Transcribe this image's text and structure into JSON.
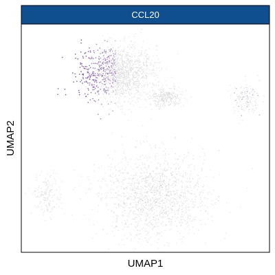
{
  "chart_data": {
    "type": "scatter",
    "title": "CCL20",
    "xlabel": "UMAP1",
    "ylabel": "UMAP2",
    "ticks_shown": false,
    "grid": false,
    "legend": "none",
    "colors": {
      "strip_fill": "#0f4e8f",
      "background_point": "#dcdcdc",
      "high_expression": "#7b4fa0"
    },
    "xlim": [
      -12,
      12
    ],
    "ylim": [
      -12,
      12
    ],
    "clusters": [
      {
        "name": "",
        "center": [
          -2.5,
          6.8
        ],
        "spread": [
          3.2,
          2.6
        ],
        "density": "high",
        "expression": "high-at-left-edge"
      },
      {
        "name": "",
        "center": [
          2.0,
          4.3
        ],
        "spread": [
          1.4,
          0.9
        ],
        "density": "medium",
        "expression": "none"
      },
      {
        "name": "",
        "center": [
          9.8,
          4.2
        ],
        "spread": [
          1.2,
          1.6
        ],
        "density": "low",
        "expression": "sparse"
      },
      {
        "name": "",
        "center": [
          0.8,
          -6.0
        ],
        "spread": [
          4.6,
          4.0
        ],
        "density": "high",
        "expression": "faint"
      },
      {
        "name": "",
        "center": [
          -9.5,
          -6.0
        ],
        "spread": [
          1.3,
          2.0
        ],
        "density": "low",
        "expression": "none"
      }
    ]
  }
}
